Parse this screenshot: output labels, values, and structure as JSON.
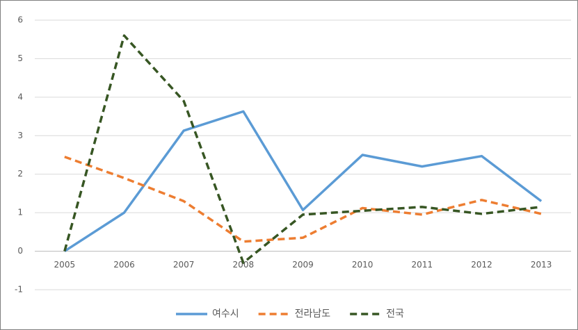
{
  "chart_data": {
    "type": "line",
    "categories": [
      "2005",
      "2006",
      "2007",
      "2008",
      "2009",
      "2010",
      "2011",
      "2012",
      "2013"
    ],
    "series": [
      {
        "name": "여수시",
        "color": "#5b9bd5",
        "line_style": "solid",
        "values": [
          0,
          1.0,
          3.13,
          3.63,
          1.07,
          2.5,
          2.2,
          2.47,
          1.3
        ]
      },
      {
        "name": "전라남도",
        "color": "#ed7d31",
        "line_style": "dashed",
        "values": [
          2.45,
          1.9,
          1.3,
          0.25,
          0.35,
          1.12,
          0.95,
          1.33,
          0.97
        ]
      },
      {
        "name": "전국",
        "color": "#375623",
        "line_style": "dashed",
        "values": [
          0,
          5.6,
          3.9,
          -0.3,
          0.95,
          1.05,
          1.15,
          0.97,
          1.15
        ]
      }
    ],
    "ylim": [
      -1,
      6
    ],
    "yticks": [
      -1,
      0,
      1,
      2,
      3,
      4,
      5,
      6
    ],
    "grid": true,
    "legend": "bottom"
  }
}
